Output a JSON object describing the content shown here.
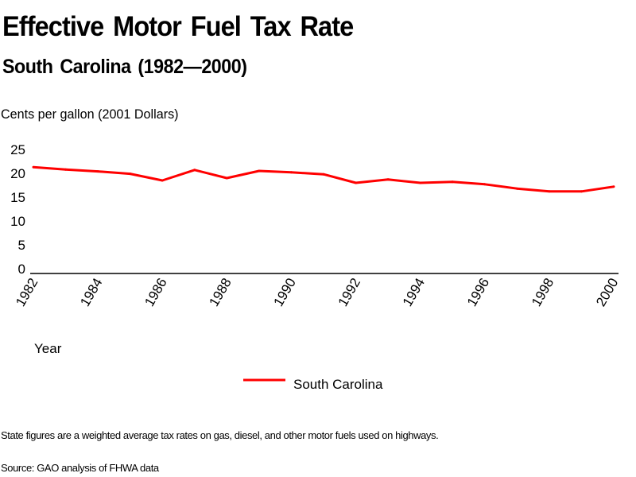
{
  "chart_data": {
    "type": "line",
    "title": "Effective Motor Fuel Tax Rate",
    "subtitle": "South Carolina (1982—2000)",
    "ylabel": "Cents per gallon (2001 Dollars)",
    "xlabel": "Year",
    "ylim": [
      0,
      25
    ],
    "yticks": [
      "0",
      "5",
      "10",
      "15",
      "20",
      "25"
    ],
    "xlim": [
      1982,
      2000
    ],
    "xticks": [
      "1982",
      "1984",
      "1986",
      "1988",
      "1990",
      "1992",
      "1994",
      "1996",
      "1998",
      "2000"
    ],
    "grid": false,
    "legend_position": "bottom-center",
    "x": [
      1982,
      1983,
      1984,
      1985,
      1986,
      1987,
      1988,
      1989,
      1990,
      1991,
      1992,
      1993,
      1994,
      1995,
      1996,
      1997,
      1998,
      1999,
      2000
    ],
    "series": [
      {
        "name": "South Carolina",
        "color": "#ff0000",
        "values": [
          21.3,
          20.8,
          20.4,
          19.9,
          18.5,
          20.7,
          19.0,
          20.5,
          20.2,
          19.8,
          18.0,
          18.7,
          18.0,
          18.2,
          17.7,
          16.8,
          16.2,
          16.2,
          17.2
        ]
      }
    ]
  },
  "footnote": "State figures are a weighted average tax rates on gas, diesel, and other motor fuels used on highways.",
  "source": "Source: GAO analysis of FHWA data"
}
